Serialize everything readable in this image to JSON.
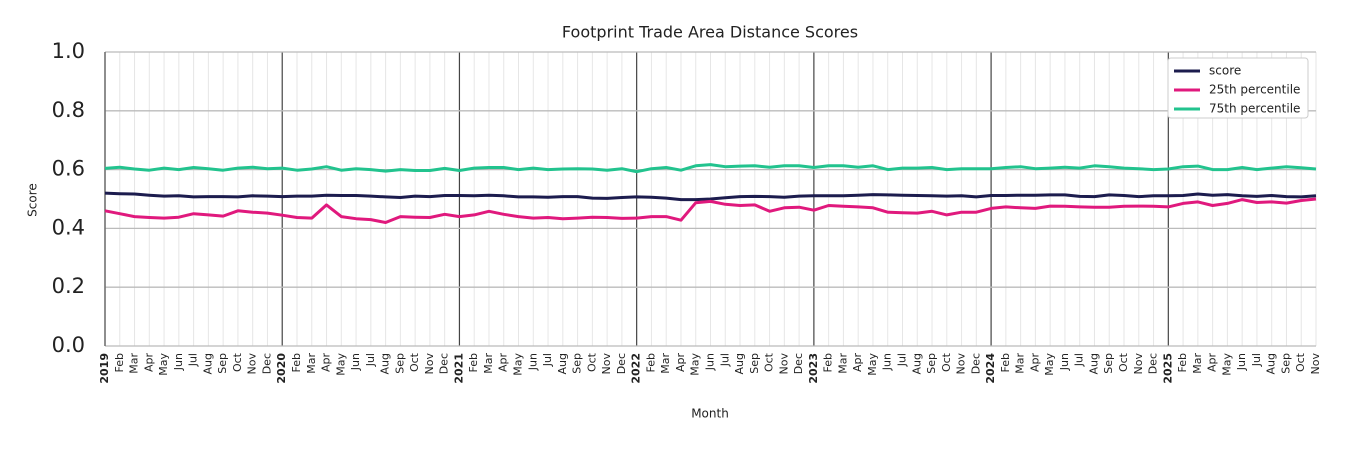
{
  "chart_data": {
    "type": "line",
    "title": "Footprint Trade Area Distance Scores",
    "x_label": "Month",
    "y_label": "Score",
    "categories": [
      "2019",
      "Feb",
      "Mar",
      "Apr",
      "May",
      "Jun",
      "Jul",
      "Aug",
      "Sep",
      "Oct",
      "Nov",
      "Dec",
      "2020",
      "Feb",
      "Mar",
      "Apr",
      "May",
      "Jun",
      "Jul",
      "Aug",
      "Sep",
      "Oct",
      "Nov",
      "Dec",
      "2021",
      "Feb",
      "Mar",
      "Apr",
      "May",
      "Jun",
      "Jul",
      "Aug",
      "Sep",
      "Oct",
      "Nov",
      "Dec",
      "2022",
      "Feb",
      "Mar",
      "Apr",
      "May",
      "Jun",
      "Jul",
      "Aug",
      "Sep",
      "Oct",
      "Nov",
      "Dec",
      "2023",
      "Feb",
      "Mar",
      "Apr",
      "May",
      "Jun",
      "Jul",
      "Aug",
      "Sep",
      "Oct",
      "Nov",
      "Dec",
      "2024",
      "Feb",
      "Mar",
      "Apr",
      "May",
      "Jun",
      "Jul",
      "Aug",
      "Sep",
      "Oct",
      "Nov",
      "Dec",
      "2025",
      "Feb",
      "Mar",
      "Apr",
      "May",
      "Jun",
      "Jul",
      "Aug",
      "Sep",
      "Oct",
      "Nov"
    ],
    "series": [
      {
        "name": "score",
        "color": "#1c1c4e",
        "values": [
          0.52,
          0.518,
          0.517,
          0.513,
          0.51,
          0.511,
          0.507,
          0.508,
          0.508,
          0.507,
          0.511,
          0.51,
          0.508,
          0.51,
          0.51,
          0.513,
          0.512,
          0.512,
          0.51,
          0.507,
          0.505,
          0.51,
          0.508,
          0.512,
          0.512,
          0.511,
          0.513,
          0.511,
          0.507,
          0.507,
          0.506,
          0.508,
          0.508,
          0.503,
          0.502,
          0.505,
          0.507,
          0.506,
          0.503,
          0.498,
          0.498,
          0.5,
          0.504,
          0.508,
          0.509,
          0.508,
          0.506,
          0.51,
          0.511,
          0.511,
          0.511,
          0.513,
          0.515,
          0.514,
          0.513,
          0.512,
          0.511,
          0.51,
          0.511,
          0.507,
          0.512,
          0.512,
          0.513,
          0.513,
          0.514,
          0.514,
          0.509,
          0.508,
          0.514,
          0.512,
          0.508,
          0.511,
          0.511,
          0.512,
          0.517,
          0.513,
          0.515,
          0.511,
          0.509,
          0.512,
          0.508,
          0.507,
          0.511
        ]
      },
      {
        "name": "25th percentile",
        "color": "#e0197d",
        "values": [
          0.46,
          0.45,
          0.44,
          0.437,
          0.435,
          0.438,
          0.45,
          0.446,
          0.442,
          0.46,
          0.455,
          0.452,
          0.445,
          0.437,
          0.435,
          0.48,
          0.44,
          0.433,
          0.43,
          0.42,
          0.44,
          0.438,
          0.437,
          0.448,
          0.44,
          0.446,
          0.458,
          0.448,
          0.44,
          0.435,
          0.437,
          0.433,
          0.435,
          0.438,
          0.437,
          0.434,
          0.435,
          0.44,
          0.44,
          0.428,
          0.487,
          0.492,
          0.482,
          0.478,
          0.48,
          0.458,
          0.47,
          0.472,
          0.462,
          0.478,
          0.475,
          0.473,
          0.47,
          0.455,
          0.453,
          0.452,
          0.458,
          0.446,
          0.455,
          0.455,
          0.468,
          0.473,
          0.47,
          0.468,
          0.476,
          0.475,
          0.473,
          0.472,
          0.472,
          0.475,
          0.476,
          0.475,
          0.473,
          0.485,
          0.49,
          0.478,
          0.485,
          0.498,
          0.488,
          0.49,
          0.486,
          0.495,
          0.5
        ]
      },
      {
        "name": "75th percentile",
        "color": "#22c38e",
        "values": [
          0.604,
          0.608,
          0.602,
          0.598,
          0.605,
          0.6,
          0.607,
          0.603,
          0.598,
          0.605,
          0.608,
          0.603,
          0.605,
          0.598,
          0.602,
          0.61,
          0.598,
          0.603,
          0.6,
          0.595,
          0.6,
          0.597,
          0.597,
          0.604,
          0.597,
          0.605,
          0.607,
          0.607,
          0.6,
          0.605,
          0.6,
          0.602,
          0.603,
          0.602,
          0.598,
          0.603,
          0.593,
          0.603,
          0.607,
          0.598,
          0.613,
          0.617,
          0.61,
          0.612,
          0.613,
          0.608,
          0.613,
          0.613,
          0.607,
          0.613,
          0.613,
          0.608,
          0.613,
          0.6,
          0.605,
          0.605,
          0.607,
          0.6,
          0.603,
          0.603,
          0.603,
          0.607,
          0.61,
          0.603,
          0.605,
          0.608,
          0.605,
          0.613,
          0.61,
          0.605,
          0.603,
          0.6,
          0.602,
          0.61,
          0.612,
          0.6,
          0.6,
          0.607,
          0.6,
          0.605,
          0.61,
          0.606,
          0.602
        ]
      }
    ],
    "ylim": [
      0,
      1
    ],
    "yticks": [
      {
        "value": 0,
        "label": "0.0"
      },
      {
        "value": 0.2,
        "label": "0.2"
      },
      {
        "value": 0.4,
        "label": "0.4"
      },
      {
        "value": 0.6,
        "label": "0.6"
      },
      {
        "value": 0.8,
        "label": "0.8"
      },
      {
        "value": 1,
        "label": "1.0"
      }
    ],
    "grid": true,
    "legend": "upper right"
  }
}
